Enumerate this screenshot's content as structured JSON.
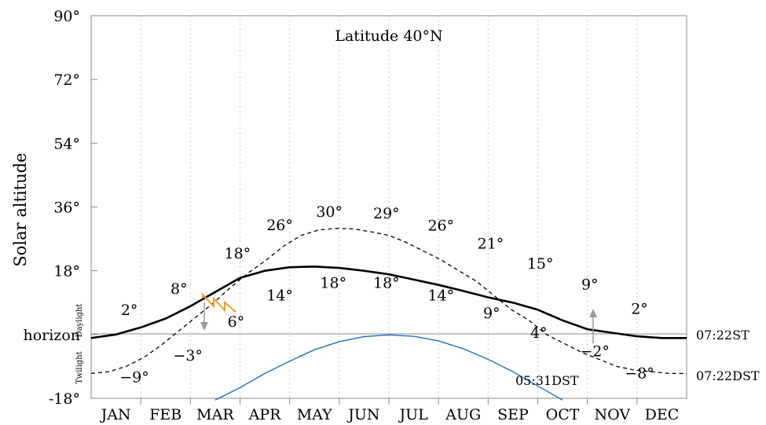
{
  "chart_data": {
    "type": "line",
    "title": "Latitude 40°N",
    "ylabel": "Solar altitude",
    "ylim": [
      -18,
      90
    ],
    "y_ticks": [
      {
        "value": 90,
        "label": "90°"
      },
      {
        "value": 72,
        "label": "72°"
      },
      {
        "value": 54,
        "label": "54°"
      },
      {
        "value": 36,
        "label": "36°"
      },
      {
        "value": 18,
        "label": "18°"
      },
      {
        "value": 0,
        "label": "horizon"
      },
      {
        "value": -18,
        "label": "-18°"
      }
    ],
    "categories": [
      "JAN",
      "FEB",
      "MAR",
      "APR",
      "MAY",
      "JUN",
      "JUL",
      "AUG",
      "SEP",
      "OCT",
      "NOV",
      "DEC"
    ],
    "band_labels": {
      "upper": "Daylight",
      "lower": "Twilight"
    },
    "series": [
      {
        "key": "st",
        "style": "solid",
        "color": "#000000",
        "end_label": "07:22ST",
        "points": [
          [
            0,
            -1
          ],
          [
            0.5,
            0
          ],
          [
            1,
            2
          ],
          [
            1.5,
            4.5
          ],
          [
            2,
            8
          ],
          [
            2.5,
            12
          ],
          [
            3,
            16
          ],
          [
            3.5,
            18
          ],
          [
            4,
            19
          ],
          [
            4.5,
            19.2
          ],
          [
            5,
            18.8
          ],
          [
            5.5,
            18
          ],
          [
            6,
            17
          ],
          [
            6.5,
            15.5
          ],
          [
            7,
            14
          ],
          [
            7.5,
            12.3
          ],
          [
            8,
            10.5
          ],
          [
            8.5,
            9
          ],
          [
            9,
            7
          ],
          [
            9.5,
            4
          ],
          [
            10,
            1.5
          ],
          [
            10.5,
            0.5
          ],
          [
            11,
            -0.5
          ],
          [
            11.5,
            -1
          ],
          [
            12,
            -1
          ]
        ]
      },
      {
        "key": "dst",
        "style": "dashed",
        "color": "#000000",
        "end_label": "07:22DST",
        "points": [
          [
            0,
            -11
          ],
          [
            0.5,
            -10.5
          ],
          [
            1,
            -9
          ],
          [
            1.5,
            -6.5
          ],
          [
            2,
            -3
          ],
          [
            2.5,
            1
          ],
          [
            3,
            5
          ],
          [
            3.5,
            9
          ],
          [
            4,
            13.5
          ],
          [
            4.5,
            17.5
          ],
          [
            5,
            21
          ],
          [
            5.5,
            25
          ],
          [
            6,
            28
          ],
          [
            6.5,
            29.5
          ],
          [
            7,
            30
          ],
          [
            7.5,
            29.8
          ],
          [
            8,
            29
          ],
          [
            8.5,
            28
          ],
          [
            9,
            26
          ],
          [
            9.5,
            23.5
          ],
          [
            10,
            21
          ],
          [
            10.5,
            18
          ],
          [
            11,
            15
          ],
          [
            11.5,
            11
          ],
          [
            12,
            7
          ],
          [
            12.5,
            4
          ],
          [
            13,
            0
          ],
          [
            13.5,
            -2.5
          ],
          [
            14,
            -5
          ],
          [
            14.5,
            -7
          ],
          [
            15,
            -9
          ],
          [
            15.5,
            -10
          ],
          [
            16,
            -10.5
          ],
          [
            16.5,
            -11
          ],
          [
            17,
            -11
          ]
        ],
        "x_scale": "dst"
      },
      {
        "key": "dst_morning",
        "style": "solid",
        "color": "#1a73b8",
        "end_label": "05:31DST",
        "points": [
          [
            2.5,
            -18.5
          ],
          [
            3,
            -15
          ],
          [
            3.5,
            -11
          ],
          [
            4,
            -7.5
          ],
          [
            4.5,
            -4.3
          ],
          [
            5,
            -2
          ],
          [
            5.5,
            -0.6
          ],
          [
            6,
            -0.1
          ],
          [
            6.5,
            -0.5
          ],
          [
            7,
            -1.8
          ],
          [
            7.5,
            -4
          ],
          [
            8,
            -7
          ],
          [
            8.5,
            -10.5
          ],
          [
            9,
            -14.5
          ],
          [
            9.5,
            -18.5
          ]
        ]
      }
    ],
    "value_labels": [
      {
        "text": "2°",
        "x": 0.77,
        "y": 5.5
      },
      {
        "text": "8°",
        "x": 1.77,
        "y": 11.5
      },
      {
        "text": "18°",
        "x": 2.95,
        "y": 21.5
      },
      {
        "text": "6°",
        "x": 2.92,
        "y": 2.2
      },
      {
        "text": "−3°",
        "x": 1.95,
        "y": -7.3
      },
      {
        "text": "−9°",
        "x": 0.87,
        "y": -13.5
      },
      {
        "text": "26°",
        "x": 3.8,
        "y": 29.5
      },
      {
        "text": "30°",
        "x": 4.8,
        "y": 33.2
      },
      {
        "text": "29°",
        "x": 5.95,
        "y": 32.8
      },
      {
        "text": "26°",
        "x": 7.05,
        "y": 29.4
      },
      {
        "text": "21°",
        "x": 8.05,
        "y": 24.3
      },
      {
        "text": "15°",
        "x": 9.05,
        "y": 18.6
      },
      {
        "text": "9°",
        "x": 10.05,
        "y": 12.7
      },
      {
        "text": "2°",
        "x": 11.05,
        "y": 5.8
      },
      {
        "text": "−2°",
        "x": 10.15,
        "y": -6.1
      },
      {
        "text": "−8°",
        "x": 11.05,
        "y": -12.3
      },
      {
        "text": "14°",
        "x": 3.8,
        "y": 9.6
      },
      {
        "text": "18°",
        "x": 4.88,
        "y": 13.2
      },
      {
        "text": "18°",
        "x": 5.95,
        "y": 13.2
      },
      {
        "text": "14°",
        "x": 7.05,
        "y": 9.6
      },
      {
        "text": "9°",
        "x": 8.07,
        "y": 4.6
      },
      {
        "text": "4°",
        "x": 9.02,
        "y": -0.9
      }
    ]
  }
}
